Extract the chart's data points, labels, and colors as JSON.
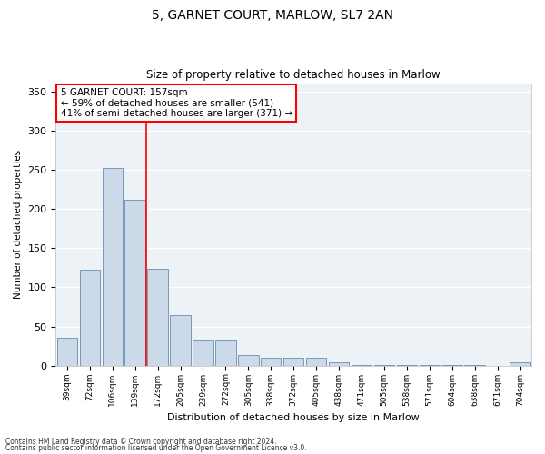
{
  "title1": "5, GARNET COURT, MARLOW, SL7 2AN",
  "title2": "Size of property relative to detached houses in Marlow",
  "xlabel": "Distribution of detached houses by size in Marlow",
  "ylabel": "Number of detached properties",
  "categories": [
    "39sqm",
    "72sqm",
    "106sqm",
    "139sqm",
    "172sqm",
    "205sqm",
    "239sqm",
    "272sqm",
    "305sqm",
    "338sqm",
    "372sqm",
    "405sqm",
    "438sqm",
    "471sqm",
    "505sqm",
    "538sqm",
    "571sqm",
    "604sqm",
    "638sqm",
    "671sqm",
    "704sqm"
  ],
  "values": [
    36,
    122,
    252,
    212,
    124,
    65,
    33,
    33,
    14,
    10,
    10,
    10,
    4,
    1,
    1,
    1,
    1,
    1,
    1,
    0,
    4
  ],
  "bar_color": "#ccd9e8",
  "bar_edge_color": "#7799bb",
  "property_line_x": 3.5,
  "annotation_text": "5 GARNET COURT: 157sqm\n← 59% of detached houses are smaller (541)\n41% of semi-detached houses are larger (371) →",
  "annotation_box_color": "white",
  "annotation_box_edge_color": "red",
  "vline_color": "red",
  "ylim": [
    0,
    360
  ],
  "yticks": [
    0,
    50,
    100,
    150,
    200,
    250,
    300,
    350
  ],
  "background_color": "#edf2f7",
  "grid_color": "white",
  "footer1": "Contains HM Land Registry data © Crown copyright and database right 2024.",
  "footer2": "Contains public sector information licensed under the Open Government Licence v3.0."
}
